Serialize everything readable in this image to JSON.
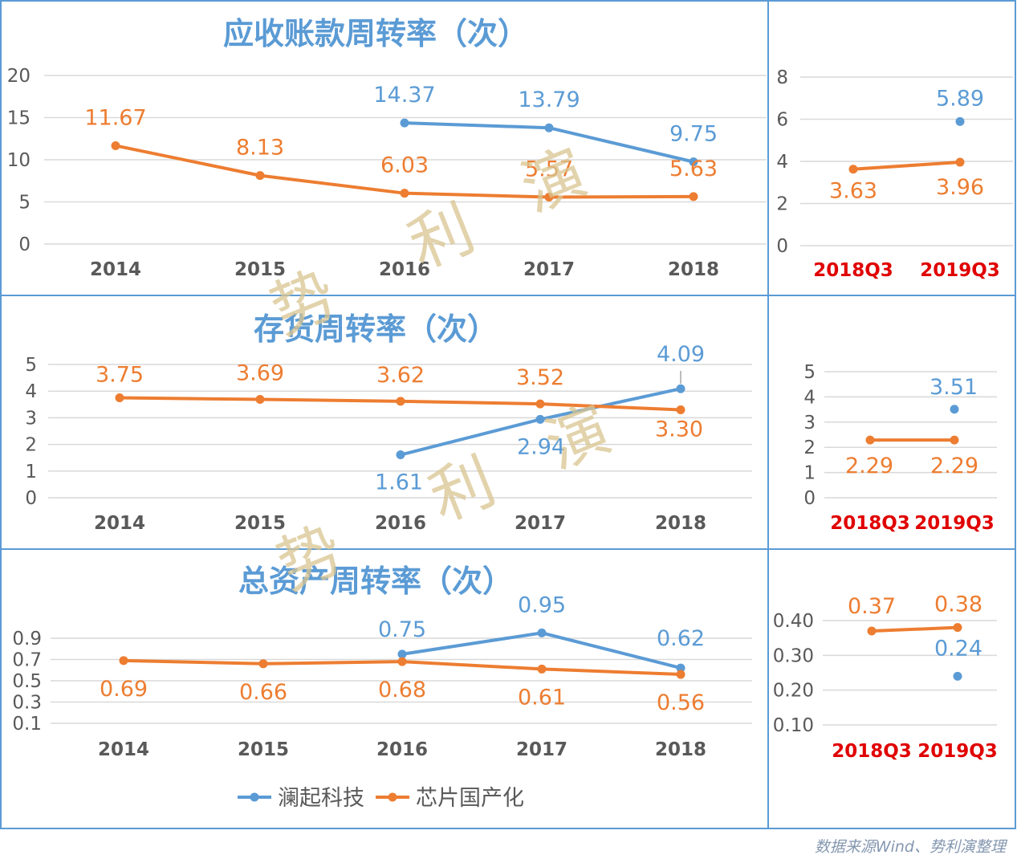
{
  "colors": {
    "blue": "#5b9bd5",
    "orange": "#ed7d31",
    "title": "#5b9bd5",
    "frame": "#5b9bd5",
    "axis_text": "#595959",
    "quarter_label": "#e00000",
    "grid": "#d9d9d9",
    "watermark": "#d8c490"
  },
  "watermark": [
    "势",
    "利",
    "演"
  ],
  "legend": [
    {
      "name": "澜起科技",
      "color": "#5b9bd5"
    },
    {
      "name": "芯片国产化",
      "color": "#ed7d31"
    }
  ],
  "source_note": "数据来源Wind、势利演整理",
  "chart_data": [
    {
      "id": "receivable-annual",
      "type": "line",
      "title": "应收账款周转率（次）",
      "categories": [
        "2014",
        "2015",
        "2016",
        "2017",
        "2018"
      ],
      "yticks": [
        "0",
        "5",
        "10",
        "15",
        "20"
      ],
      "ylim": [
        0,
        20
      ],
      "series": [
        {
          "name": "澜起科技",
          "values": [
            null,
            null,
            14.37,
            13.79,
            9.75
          ],
          "labels": [
            null,
            null,
            "14.37",
            "13.79",
            "9.75"
          ]
        },
        {
          "name": "芯片国产化",
          "values": [
            11.67,
            8.13,
            6.03,
            5.57,
            5.63
          ],
          "labels": [
            "11.67",
            "8.13",
            "6.03",
            "5.57",
            "5.63"
          ]
        }
      ]
    },
    {
      "id": "receivable-quarter",
      "type": "line",
      "title": "",
      "categories": [
        "2018Q3",
        "2019Q3"
      ],
      "yticks": [
        "0",
        "2",
        "4",
        "6",
        "8"
      ],
      "ylim": [
        0,
        8
      ],
      "series": [
        {
          "name": "澜起科技",
          "values": [
            null,
            5.89
          ],
          "labels": [
            null,
            "5.89"
          ]
        },
        {
          "name": "芯片国产化",
          "values": [
            3.63,
            3.96
          ],
          "labels": [
            "3.63",
            "3.96"
          ]
        }
      ]
    },
    {
      "id": "inventory-annual",
      "type": "line",
      "title": "存货周转率（次）",
      "categories": [
        "2014",
        "2015",
        "2016",
        "2017",
        "2018"
      ],
      "yticks": [
        "0",
        "1",
        "2",
        "3",
        "4",
        "5"
      ],
      "ylim": [
        0,
        5
      ],
      "series": [
        {
          "name": "澜起科技",
          "values": [
            null,
            null,
            1.61,
            2.94,
            4.09
          ],
          "labels": [
            null,
            null,
            "1.61",
            "2.94",
            "4.09"
          ]
        },
        {
          "name": "芯片国产化",
          "values": [
            3.75,
            3.69,
            3.62,
            3.52,
            3.3
          ],
          "labels": [
            "3.75",
            "3.69",
            "3.62",
            "3.52",
            "3.30"
          ]
        }
      ]
    },
    {
      "id": "inventory-quarter",
      "type": "line",
      "title": "",
      "categories": [
        "2018Q3",
        "2019Q3"
      ],
      "yticks": [
        "0",
        "1",
        "2",
        "3",
        "4",
        "5"
      ],
      "ylim": [
        0,
        5
      ],
      "series": [
        {
          "name": "澜起科技",
          "values": [
            null,
            3.51
          ],
          "labels": [
            null,
            "3.51"
          ]
        },
        {
          "name": "芯片国产化",
          "values": [
            2.29,
            2.29
          ],
          "labels": [
            "2.29",
            "2.29"
          ]
        }
      ]
    },
    {
      "id": "total-asset-annual",
      "type": "line",
      "title": "总资产周转率（次）",
      "categories": [
        "2014",
        "2015",
        "2016",
        "2017",
        "2018"
      ],
      "yticks": [
        "0.1",
        "0.3",
        "0.5",
        "0.7",
        "0.9"
      ],
      "ylim": [
        0.1,
        0.9
      ],
      "series": [
        {
          "name": "澜起科技",
          "values": [
            null,
            null,
            0.75,
            0.95,
            0.62
          ],
          "labels": [
            null,
            null,
            "0.75",
            "0.95",
            "0.62"
          ]
        },
        {
          "name": "芯片国产化",
          "values": [
            0.69,
            0.66,
            0.68,
            0.61,
            0.56
          ],
          "labels": [
            "0.69",
            "0.66",
            "0.68",
            "0.61",
            "0.56"
          ]
        }
      ]
    },
    {
      "id": "total-asset-quarter",
      "type": "line",
      "title": "",
      "categories": [
        "2018Q3",
        "2019Q3"
      ],
      "yticks": [
        "0.10",
        "0.20",
        "0.30",
        "0.40"
      ],
      "ylim": [
        0.1,
        0.4
      ],
      "series": [
        {
          "name": "澜起科技",
          "values": [
            null,
            0.24
          ],
          "labels": [
            null,
            "0.24"
          ]
        },
        {
          "name": "芯片国产化",
          "values": [
            0.37,
            0.38
          ],
          "labels": [
            "0.37",
            "0.38"
          ]
        }
      ]
    }
  ]
}
